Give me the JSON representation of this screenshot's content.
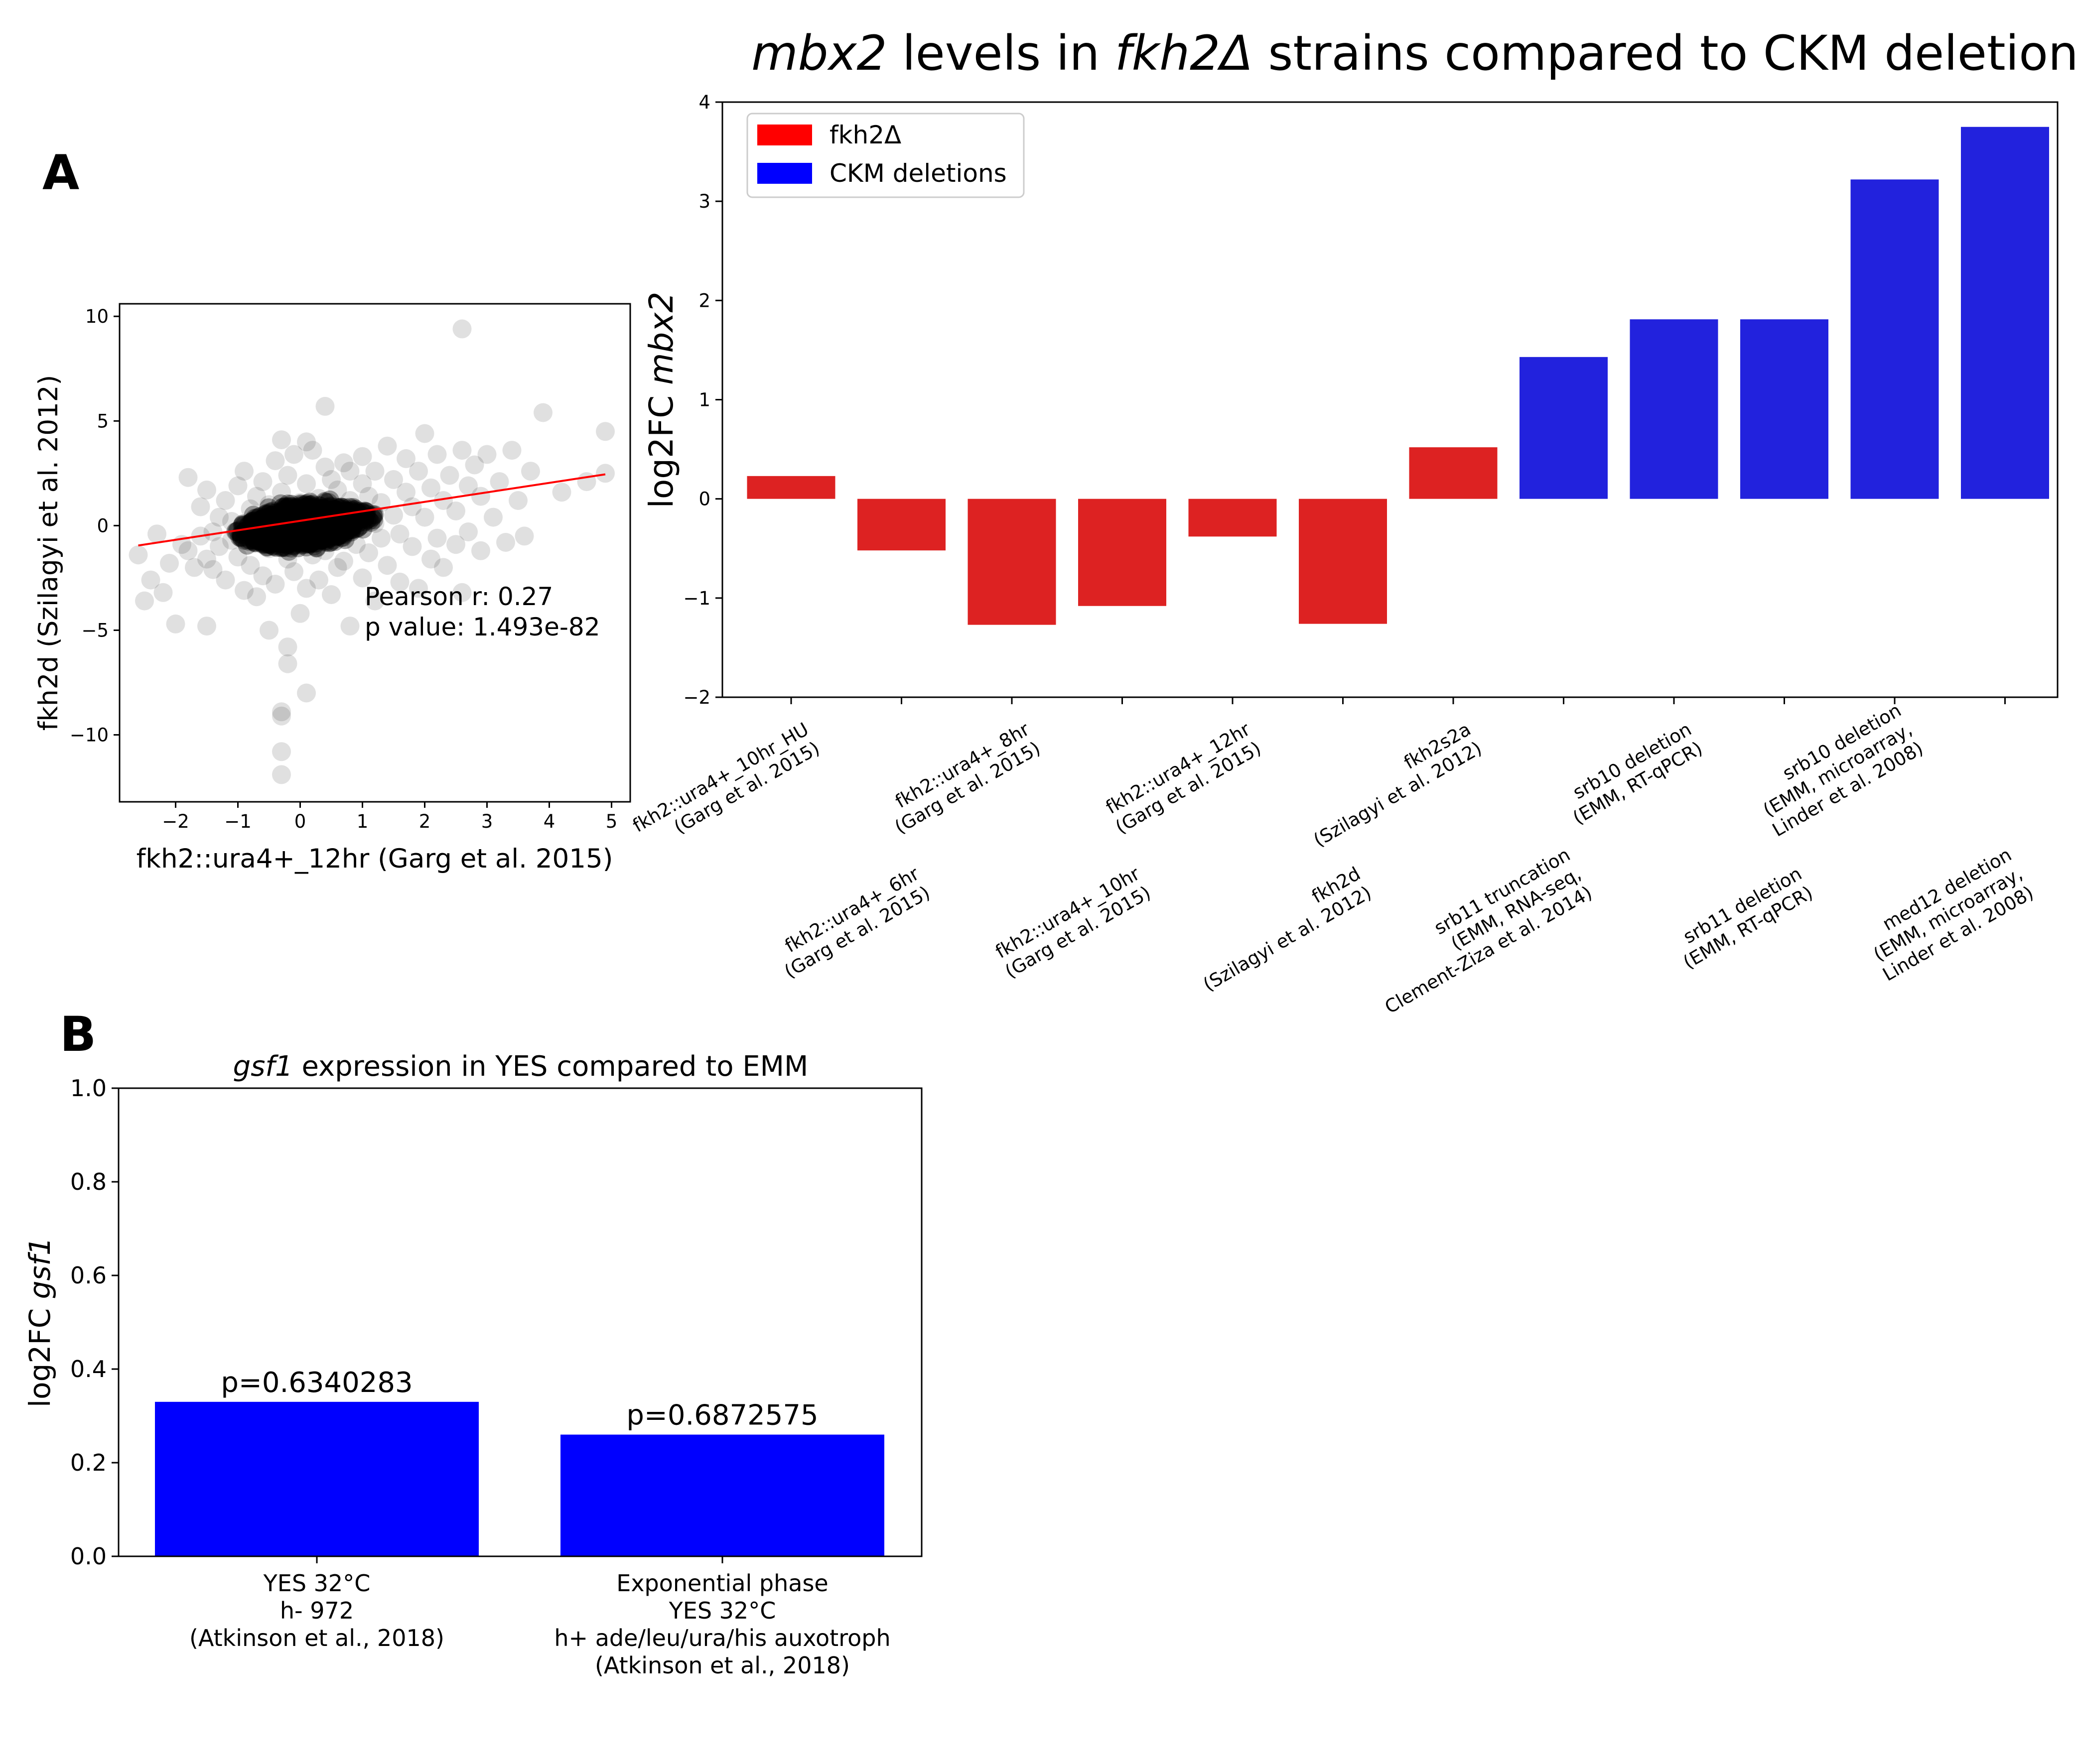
{
  "panel_labels": {
    "a": "A",
    "b": "B"
  },
  "chart_data": [
    {
      "id": "scatter",
      "type": "scatter",
      "title": "",
      "xlabel": "fkh2::ura4+_12hr (Garg et al. 2015)",
      "ylabel": "fkh2d (Szilagyi et al. 2012)",
      "xlim": [
        -2.9,
        5.3
      ],
      "ylim": [
        -13.2,
        10.6
      ],
      "xticks": [
        -2,
        -1,
        0,
        1,
        2,
        3,
        4,
        5
      ],
      "yticks": [
        -10,
        -5,
        0,
        5,
        10
      ],
      "x_tick_labels": [
        "−2",
        "−1",
        "0",
        "1",
        "2",
        "3",
        "4",
        "5"
      ],
      "y_tick_labels": [
        "−10",
        "−5",
        "0",
        "5",
        "10"
      ],
      "point_color": "#000000",
      "point_alpha": 0.12,
      "points": [
        [
          -2.6,
          -1.4
        ],
        [
          -2.5,
          -3.6
        ],
        [
          -2.4,
          -2.6
        ],
        [
          -2.3,
          -0.4
        ],
        [
          -2.2,
          -3.2
        ],
        [
          -2.1,
          -1.8
        ],
        [
          -2.0,
          -4.7
        ],
        [
          -1.9,
          -0.9
        ],
        [
          -1.8,
          2.3
        ],
        [
          -1.8,
          -1.2
        ],
        [
          -1.7,
          -2.0
        ],
        [
          -1.6,
          0.9
        ],
        [
          -1.6,
          -0.5
        ],
        [
          -1.5,
          -1.6
        ],
        [
          -1.5,
          1.7
        ],
        [
          -1.5,
          -4.8
        ],
        [
          -1.4,
          -0.3
        ],
        [
          -1.4,
          -2.1
        ],
        [
          -1.3,
          0.4
        ],
        [
          -1.3,
          -1.0
        ],
        [
          -1.2,
          1.2
        ],
        [
          -1.2,
          -2.6
        ],
        [
          -1.1,
          -0.7
        ],
        [
          -1.1,
          0.2
        ],
        [
          -1.0,
          1.9
        ],
        [
          -1.0,
          -1.5
        ],
        [
          -0.9,
          -0.1
        ],
        [
          -0.9,
          2.6
        ],
        [
          -0.9,
          -3.1
        ],
        [
          -0.8,
          0.8
        ],
        [
          -0.8,
          -1.9
        ],
        [
          -0.7,
          1.4
        ],
        [
          -0.7,
          -0.6
        ],
        [
          -0.7,
          -3.4
        ],
        [
          -0.6,
          0.3
        ],
        [
          -0.6,
          2.1
        ],
        [
          -0.6,
          -2.4
        ],
        [
          -0.5,
          -5.0
        ],
        [
          -0.5,
          1.0
        ],
        [
          -0.5,
          -1.1
        ],
        [
          -0.4,
          3.1
        ],
        [
          -0.4,
          0.1
        ],
        [
          -0.4,
          -2.8
        ],
        [
          -0.3,
          4.1
        ],
        [
          -0.3,
          1.6
        ],
        [
          -0.3,
          -0.4
        ],
        [
          -0.3,
          -8.9
        ],
        [
          -0.3,
          -9.1
        ],
        [
          -0.3,
          -10.8
        ],
        [
          -0.3,
          -11.9
        ],
        [
          -0.2,
          -5.8
        ],
        [
          -0.2,
          -6.6
        ],
        [
          -0.2,
          2.4
        ],
        [
          -0.2,
          -1.6
        ],
        [
          -0.1,
          0.6
        ],
        [
          -0.1,
          3.4
        ],
        [
          -0.1,
          -2.2
        ],
        [
          0.0,
          1.1
        ],
        [
          0.0,
          -0.8
        ],
        [
          0.0,
          -4.2
        ],
        [
          0.1,
          -8.0
        ],
        [
          0.1,
          4.0
        ],
        [
          0.1,
          -3.0
        ],
        [
          0.1,
          2.0
        ],
        [
          0.2,
          0.4
        ],
        [
          0.2,
          -1.4
        ],
        [
          0.2,
          3.6
        ],
        [
          0.3,
          -2.6
        ],
        [
          0.3,
          1.3
        ],
        [
          0.3,
          -0.2
        ],
        [
          0.4,
          5.7
        ],
        [
          0.4,
          2.8
        ],
        [
          0.4,
          -1.2
        ],
        [
          0.5,
          0.9
        ],
        [
          0.5,
          -3.3
        ],
        [
          0.5,
          2.2
        ],
        [
          0.6,
          -0.5
        ],
        [
          0.6,
          1.7
        ],
        [
          0.6,
          -2.0
        ],
        [
          0.7,
          3.0
        ],
        [
          0.7,
          0.2
        ],
        [
          0.7,
          -1.7
        ],
        [
          0.8,
          1.2
        ],
        [
          0.8,
          -4.8
        ],
        [
          0.8,
          2.6
        ],
        [
          0.9,
          -0.9
        ],
        [
          0.9,
          0.6
        ],
        [
          1.0,
          2.0
        ],
        [
          1.0,
          -2.5
        ],
        [
          1.0,
          3.3
        ],
        [
          1.1,
          -1.3
        ],
        [
          1.1,
          1.4
        ],
        [
          1.2,
          0.1
        ],
        [
          1.2,
          -3.6
        ],
        [
          1.2,
          2.6
        ],
        [
          1.3,
          -0.6
        ],
        [
          1.3,
          1.1
        ],
        [
          1.4,
          3.8
        ],
        [
          1.4,
          -1.9
        ],
        [
          1.5,
          0.5
        ],
        [
          1.5,
          2.2
        ],
        [
          1.6,
          -2.7
        ],
        [
          1.6,
          -0.4
        ],
        [
          1.7,
          1.6
        ],
        [
          1.7,
          3.2
        ],
        [
          1.8,
          -1.0
        ],
        [
          1.8,
          0.9
        ],
        [
          1.9,
          2.6
        ],
        [
          1.9,
          -3.0
        ],
        [
          2.0,
          0.4
        ],
        [
          2.0,
          4.4
        ],
        [
          2.1,
          -1.6
        ],
        [
          2.1,
          1.8
        ],
        [
          2.2,
          3.4
        ],
        [
          2.2,
          -0.6
        ],
        [
          2.3,
          1.2
        ],
        [
          2.3,
          -2.0
        ],
        [
          2.4,
          2.4
        ],
        [
          2.5,
          -0.9
        ],
        [
          2.5,
          0.7
        ],
        [
          2.6,
          3.6
        ],
        [
          2.6,
          -3.2
        ],
        [
          2.6,
          9.4
        ],
        [
          2.7,
          1.9
        ],
        [
          2.7,
          -0.3
        ],
        [
          2.8,
          2.9
        ],
        [
          2.9,
          -1.2
        ],
        [
          2.9,
          1.4
        ],
        [
          3.0,
          3.4
        ],
        [
          3.1,
          0.4
        ],
        [
          3.2,
          2.1
        ],
        [
          3.3,
          -0.8
        ],
        [
          3.4,
          3.6
        ],
        [
          3.5,
          1.2
        ],
        [
          3.6,
          -0.5
        ],
        [
          3.7,
          2.6
        ],
        [
          3.9,
          5.4
        ],
        [
          4.2,
          1.6
        ],
        [
          4.6,
          2.1
        ],
        [
          4.9,
          4.5
        ],
        [
          4.9,
          2.5
        ]
      ],
      "core_cloud": {
        "cx": 0.05,
        "cy": 0.0,
        "rx": 1.2,
        "ry": 1.25
      },
      "fit_line": {
        "x": [
          -2.6,
          4.9
        ],
        "y": [
          -0.95,
          2.45
        ],
        "color": "#ff0000"
      },
      "annotation_lines": [
        "Pearson r: 0.27",
        "p value: 1.493e-82"
      ]
    },
    {
      "id": "mbx2",
      "type": "bar",
      "title_parts": [
        {
          "text": "mbx2",
          "italic": true
        },
        {
          "text": " levels in ",
          "italic": false
        },
        {
          "text": "fkh2Δ",
          "italic": true
        },
        {
          "text": " strains compared to CKM deletions",
          "italic": false
        }
      ],
      "ylabel_parts": [
        {
          "text": "log2FC ",
          "italic": false
        },
        {
          "text": "mbx2",
          "italic": true
        }
      ],
      "ylim": [
        -2,
        4
      ],
      "yticks": [
        -2,
        -1,
        0,
        1,
        2,
        3,
        4
      ],
      "y_tick_labels": [
        "−2",
        "−1",
        "0",
        "1",
        "2",
        "3",
        "4"
      ],
      "legend": {
        "placement": "top-left",
        "entries": [
          {
            "label": "fkh2Δ",
            "color": "#ff0000"
          },
          {
            "label": "CKM deletions",
            "color": "#0000ff"
          }
        ]
      },
      "bar_colors": {
        "fkh2": "#dd2222",
        "ckm": "#2222dd"
      },
      "categories": [
        {
          "lines": [
            "fkh2::ura4+_10hr_HU",
            "(Garg et al. 2015)"
          ],
          "value": 0.23,
          "group": "fkh2"
        },
        {
          "lines": [
            "fkh2::ura4+_6hr",
            "(Garg et al. 2015)"
          ],
          "value": -0.52,
          "group": "fkh2"
        },
        {
          "lines": [
            "fkh2::ura4+_8hr",
            "(Garg et al. 2015)"
          ],
          "value": -1.27,
          "group": "fkh2"
        },
        {
          "lines": [
            "fkh2::ura4+_10hr",
            "(Garg et al. 2015)"
          ],
          "value": -1.08,
          "group": "fkh2"
        },
        {
          "lines": [
            "fkh2::ura4+_12hr",
            "(Garg et al. 2015)"
          ],
          "value": -0.38,
          "group": "fkh2"
        },
        {
          "lines": [
            "fkh2d",
            "(Szilagyi et al. 2012)"
          ],
          "value": -1.26,
          "group": "fkh2"
        },
        {
          "lines": [
            "fkh2s2a",
            "(Szilagyi et al. 2012)"
          ],
          "value": 0.52,
          "group": "fkh2"
        },
        {
          "lines": [
            "srb11 truncation",
            "(EMM, RNA-seq,",
            "Clement-Ziza et al. 2014)"
          ],
          "value": 1.43,
          "group": "ckm"
        },
        {
          "lines": [
            "srb10 deletion",
            "(EMM, RT-qPCR)"
          ],
          "value": 1.81,
          "group": "ckm"
        },
        {
          "lines": [
            "srb11 deletion",
            "(EMM, RT-qPCR)"
          ],
          "value": 1.81,
          "group": "ckm"
        },
        {
          "lines": [
            "srb10 deletion",
            "(EMM, microarray,",
            "Linder et al. 2008)"
          ],
          "value": 3.22,
          "group": "ckm"
        },
        {
          "lines": [
            "med12 deletion",
            "(EMM, microarray,",
            "Linder et al. 2008)"
          ],
          "value": 3.75,
          "group": "ckm"
        }
      ]
    },
    {
      "id": "gsf1",
      "type": "bar",
      "title_parts": [
        {
          "text": "gsf1",
          "italic": true
        },
        {
          "text": " expression in YES compared to EMM",
          "italic": false
        }
      ],
      "ylabel_parts": [
        {
          "text": "log2FC ",
          "italic": false
        },
        {
          "text": "gsf1",
          "italic": true
        }
      ],
      "ylim": [
        0.0,
        1.0
      ],
      "yticks": [
        0.0,
        0.2,
        0.4,
        0.6,
        0.8,
        1.0
      ],
      "y_tick_labels": [
        "0.0",
        "0.2",
        "0.4",
        "0.6",
        "0.8",
        "1.0"
      ],
      "bar_color": "#0000ff",
      "categories": [
        {
          "lines": [
            "YES 32°C",
            "h- 972",
            "(Atkinson et al., 2018)"
          ],
          "value": 0.33,
          "label": "p=0.6340283"
        },
        {
          "lines": [
            "Exponential phase",
            "YES 32°C",
            "h+ ade/leu/ura/his auxotroph",
            "(Atkinson et al., 2018)"
          ],
          "value": 0.26,
          "label": "p=0.6872575"
        }
      ]
    }
  ]
}
